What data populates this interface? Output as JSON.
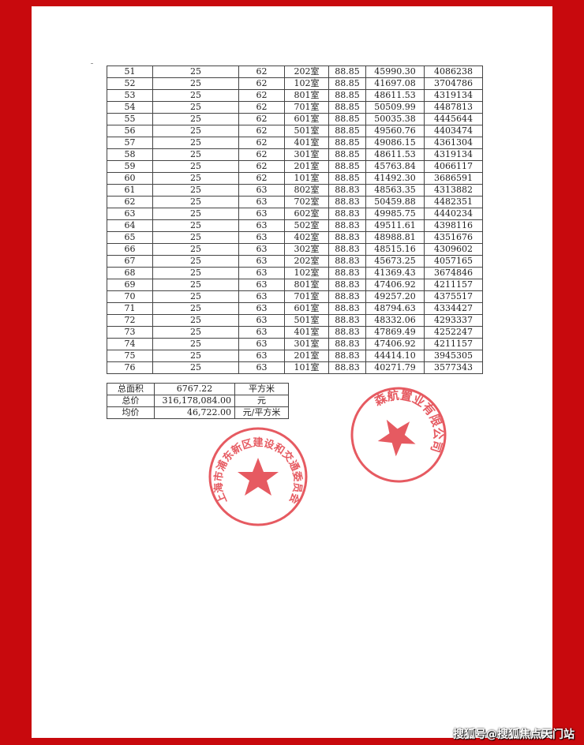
{
  "colors": {
    "background": "#c8090d",
    "stamp": "#e0323a"
  },
  "rows": [
    [
      "51",
      "25",
      "62",
      "202室",
      "88.85",
      "45990.30",
      "4086238"
    ],
    [
      "52",
      "25",
      "62",
      "102室",
      "88.85",
      "41697.08",
      "3704786"
    ],
    [
      "53",
      "25",
      "62",
      "801室",
      "88.85",
      "48611.53",
      "4319134"
    ],
    [
      "54",
      "25",
      "62",
      "701室",
      "88.85",
      "50509.99",
      "4487813"
    ],
    [
      "55",
      "25",
      "62",
      "601室",
      "88.85",
      "50035.38",
      "4445644"
    ],
    [
      "56",
      "25",
      "62",
      "501室",
      "88.85",
      "49560.76",
      "4403474"
    ],
    [
      "57",
      "25",
      "62",
      "401室",
      "88.85",
      "49086.15",
      "4361304"
    ],
    [
      "58",
      "25",
      "62",
      "301室",
      "88.85",
      "48611.53",
      "4319134"
    ],
    [
      "59",
      "25",
      "62",
      "201室",
      "88.85",
      "45763.84",
      "4066117"
    ],
    [
      "60",
      "25",
      "62",
      "101室",
      "88.85",
      "41492.30",
      "3686591"
    ],
    [
      "61",
      "25",
      "63",
      "802室",
      "88.83",
      "48563.35",
      "4313882"
    ],
    [
      "62",
      "25",
      "63",
      "702室",
      "88.83",
      "50459.88",
      "4482351"
    ],
    [
      "63",
      "25",
      "63",
      "602室",
      "88.83",
      "49985.75",
      "4440234"
    ],
    [
      "64",
      "25",
      "63",
      "502室",
      "88.83",
      "49511.61",
      "4398116"
    ],
    [
      "65",
      "25",
      "63",
      "402室",
      "88.83",
      "48988.81",
      "4351676"
    ],
    [
      "66",
      "25",
      "63",
      "302室",
      "88.83",
      "48515.16",
      "4309602"
    ],
    [
      "67",
      "25",
      "63",
      "202室",
      "88.83",
      "45673.25",
      "4057165"
    ],
    [
      "68",
      "25",
      "63",
      "102室",
      "88.83",
      "41369.43",
      "3674846"
    ],
    [
      "69",
      "25",
      "63",
      "801室",
      "88.83",
      "47406.92",
      "4211157"
    ],
    [
      "70",
      "25",
      "63",
      "701室",
      "88.83",
      "49257.20",
      "4375517"
    ],
    [
      "71",
      "25",
      "63",
      "601室",
      "88.83",
      "48794.63",
      "4334427"
    ],
    [
      "72",
      "25",
      "63",
      "501室",
      "88.83",
      "48332.06",
      "4293337"
    ],
    [
      "73",
      "25",
      "63",
      "401室",
      "88.83",
      "47869.49",
      "4252247"
    ],
    [
      "74",
      "25",
      "63",
      "301室",
      "88.83",
      "47406.92",
      "4211157"
    ],
    [
      "75",
      "25",
      "63",
      "201室",
      "88.83",
      "44414.10",
      "3945305"
    ],
    [
      "76",
      "25",
      "63",
      "101室",
      "88.83",
      "40271.79",
      "3577343"
    ]
  ],
  "summary": [
    {
      "label": "总面积",
      "value": "6767.22",
      "unit": "平方米"
    },
    {
      "label": "总价",
      "value": "316,178,084.00",
      "unit": "元"
    },
    {
      "label": "均价",
      "value": "46,722.00",
      "unit": "元/平方米"
    }
  ],
  "stamps": {
    "company": "森航置业有限公司",
    "government": "上海市浦东新区建设和交通委员会"
  },
  "watermark": "搜狐号@搜狐焦点天门站"
}
